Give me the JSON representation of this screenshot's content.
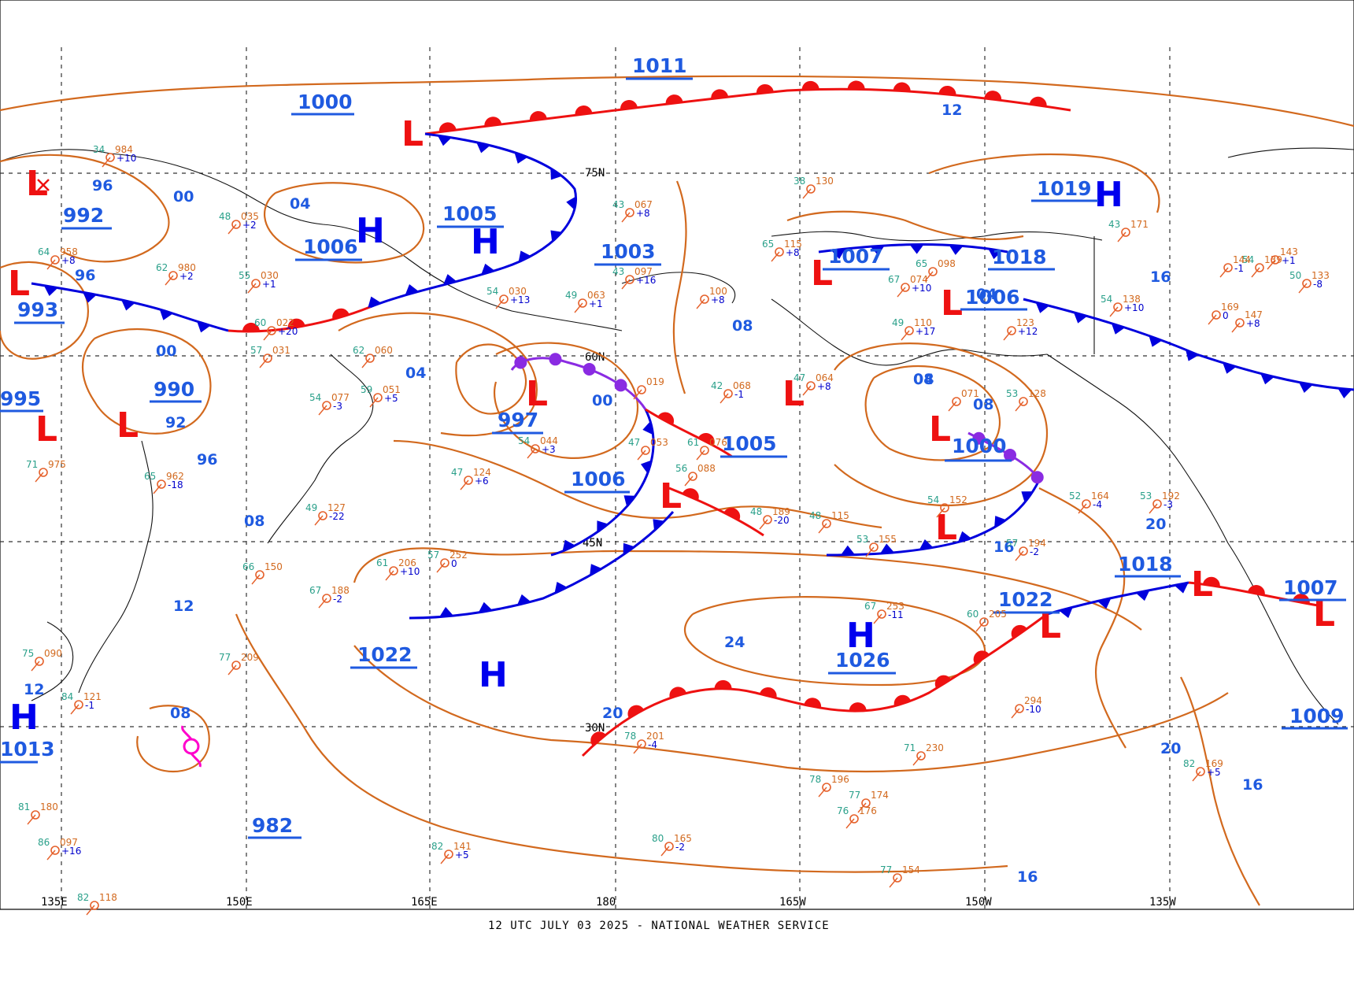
{
  "map": {
    "footer": "12 UTC JULY 03 2025 - NATIONAL WEATHER SERVICE",
    "latitude_labels": [
      "75N",
      "60N",
      "45N",
      "30N"
    ],
    "longitude_labels": [
      "135E",
      "150E",
      "165E",
      "180",
      "165W",
      "150W",
      "135W"
    ],
    "colors": {
      "isobar": "#d2691e",
      "isobar_label": "#1f5ae0",
      "high": "#0000ee",
      "low": "#ee1111",
      "warm_front": "#ee1111",
      "cold_front": "#0000dd",
      "occluded_front": "#8a2be2"
    },
    "pressure_centers": [
      {
        "type": "L",
        "value": "992"
      },
      {
        "type": "L",
        "value": "993"
      },
      {
        "type": "L",
        "value": "995"
      },
      {
        "type": "L",
        "value": "990"
      },
      {
        "type": "L",
        "value": "997"
      },
      {
        "type": "L",
        "value": "1005"
      },
      {
        "type": "L",
        "value": "1000"
      },
      {
        "type": "L",
        "value": "1007"
      },
      {
        "type": "L",
        "value": "1006"
      },
      {
        "type": "L",
        "value": "1022"
      },
      {
        "type": "L",
        "value": "1018"
      },
      {
        "type": "L",
        "value": "1007"
      },
      {
        "type": "H",
        "value": "1000"
      },
      {
        "type": "H",
        "value": "1006"
      },
      {
        "type": "H",
        "value": "1005"
      },
      {
        "type": "H",
        "value": "1003"
      },
      {
        "type": "H",
        "value": "1011"
      },
      {
        "type": "H",
        "value": "1019"
      },
      {
        "type": "H",
        "value": "1018"
      },
      {
        "type": "H",
        "value": "1022"
      },
      {
        "type": "H",
        "value": "1026"
      },
      {
        "type": "H",
        "value": "1006"
      },
      {
        "type": "H",
        "value": "1013"
      },
      {
        "type": "H",
        "value": "982"
      },
      {
        "type": "H",
        "value": "1009"
      }
    ],
    "isobar_labels": [
      "12",
      "96",
      "00",
      "04",
      "96",
      "00",
      "04",
      "00",
      "92",
      "96",
      "08",
      "12",
      "08",
      "08",
      "04",
      "08",
      "16",
      "16",
      "20",
      "20",
      "24",
      "20",
      "16",
      "16",
      "12",
      "04",
      "08"
    ],
    "stations": [
      {
        "t": "34",
        "p": "984",
        "pt": "+10"
      },
      {
        "t": "48",
        "p": "035",
        "pt": "+2"
      },
      {
        "t": "64",
        "p": "958",
        "pt": "+8"
      },
      {
        "t": "62",
        "p": "980",
        "pt": "+2"
      },
      {
        "t": "55",
        "p": "030",
        "pt": "+1"
      },
      {
        "t": "60",
        "p": "022",
        "pt": "+20"
      },
      {
        "t": "54",
        "p": "030",
        "pt": "+13"
      },
      {
        "t": "49",
        "p": "063",
        "pt": "+1"
      },
      {
        "t": "43",
        "p": "067",
        "pt": "+8"
      },
      {
        "t": "43",
        "p": "097",
        "pt": "+16"
      },
      {
        "t": "38",
        "p": "130",
        "pt": ""
      },
      {
        "t": "65",
        "p": "115",
        "pt": "+8"
      },
      {
        "t": "67",
        "p": "074",
        "pt": "+10"
      },
      {
        "t": "65",
        "p": "098",
        "pt": ""
      },
      {
        "t": "49",
        "p": "110",
        "pt": "+17"
      },
      {
        "t": "43",
        "p": "171",
        "pt": ""
      },
      {
        "t": "54",
        "p": "138",
        "pt": "+10"
      },
      {
        "t": "54",
        "p": "139",
        "pt": ""
      },
      {
        "t": "50",
        "p": "133",
        "pt": "-8"
      },
      {
        "t": "42",
        "p": "068",
        "pt": "-1"
      },
      {
        "t": "47",
        "p": "064",
        "pt": "+8"
      },
      {
        "t": "53",
        "p": "128",
        "pt": ""
      },
      {
        "t": "48",
        "p": "189",
        "pt": "-20"
      },
      {
        "t": "48",
        "p": "115",
        "pt": ""
      },
      {
        "t": "53",
        "p": "155",
        "pt": ""
      },
      {
        "t": "54",
        "p": "152",
        "pt": ""
      },
      {
        "t": "57",
        "p": "194",
        "pt": "-2"
      },
      {
        "t": "52",
        "p": "164",
        "pt": "-4"
      },
      {
        "t": "53",
        "p": "192",
        "pt": "-3"
      },
      {
        "t": "47",
        "p": "124",
        "pt": "+6"
      },
      {
        "t": "49",
        "p": "127",
        "pt": "-22"
      },
      {
        "t": "61",
        "p": "206",
        "pt": "+10"
      },
      {
        "t": "57",
        "p": "252",
        "pt": "0"
      },
      {
        "t": "66",
        "p": "150",
        "pt": ""
      },
      {
        "t": "67",
        "p": "188",
        "pt": "-2"
      },
      {
        "t": "67",
        "p": "253",
        "pt": "-11"
      },
      {
        "t": "60",
        "p": "205",
        "pt": ""
      },
      {
        "t": "77",
        "p": "209",
        "pt": ""
      },
      {
        "t": "75",
        "p": "090",
        "pt": ""
      },
      {
        "t": "84",
        "p": "121",
        "pt": "-1"
      },
      {
        "t": "78",
        "p": "201",
        "pt": "-4"
      },
      {
        "t": "71",
        "p": "230",
        "pt": ""
      },
      {
        "t": "82",
        "p": "169",
        "pt": "+5"
      },
      {
        "t": "78",
        "p": "196",
        "pt": ""
      },
      {
        "t": "77",
        "p": "174",
        "pt": ""
      },
      {
        "t": "76",
        "p": "176",
        "pt": ""
      },
      {
        "t": "77",
        "p": "154",
        "pt": ""
      },
      {
        "t": "80",
        "p": "165",
        "pt": "-2"
      },
      {
        "t": "82",
        "p": "141",
        "pt": "+5"
      },
      {
        "t": "81",
        "p": "180",
        "pt": ""
      },
      {
        "t": "86",
        "p": "097",
        "pt": "+16"
      },
      {
        "t": "82",
        "p": "118",
        "pt": ""
      },
      {
        "t": "",
        "p": "294",
        "pt": "-10"
      },
      {
        "t": "71",
        "p": "975",
        "pt": ""
      },
      {
        "t": "54",
        "p": "077",
        "pt": "-3"
      },
      {
        "t": "59",
        "p": "051",
        "pt": "+5"
      },
      {
        "t": "62",
        "p": "060",
        "pt": ""
      },
      {
        "t": "57",
        "p": "031",
        "pt": ""
      },
      {
        "t": "65",
        "p": "962",
        "pt": "-18"
      },
      {
        "t": "54",
        "p": "044",
        "pt": "+3"
      },
      {
        "t": "47",
        "p": "053",
        "pt": ""
      },
      {
        "t": "61",
        "p": "076",
        "pt": ""
      },
      {
        "t": "56",
        "p": "088",
        "pt": ""
      },
      {
        "t": "",
        "p": "019",
        "pt": ""
      },
      {
        "t": "",
        "p": "071",
        "pt": ""
      },
      {
        "t": "",
        "p": "100",
        "pt": "+8"
      },
      {
        "t": "",
        "p": "123",
        "pt": "+12"
      },
      {
        "t": "",
        "p": "144",
        "pt": "-1"
      },
      {
        "t": "",
        "p": "143",
        "pt": "+1"
      },
      {
        "t": "",
        "p": "147",
        "pt": "+8"
      },
      {
        "t": "",
        "p": "169",
        "pt": "0"
      }
    ]
  }
}
